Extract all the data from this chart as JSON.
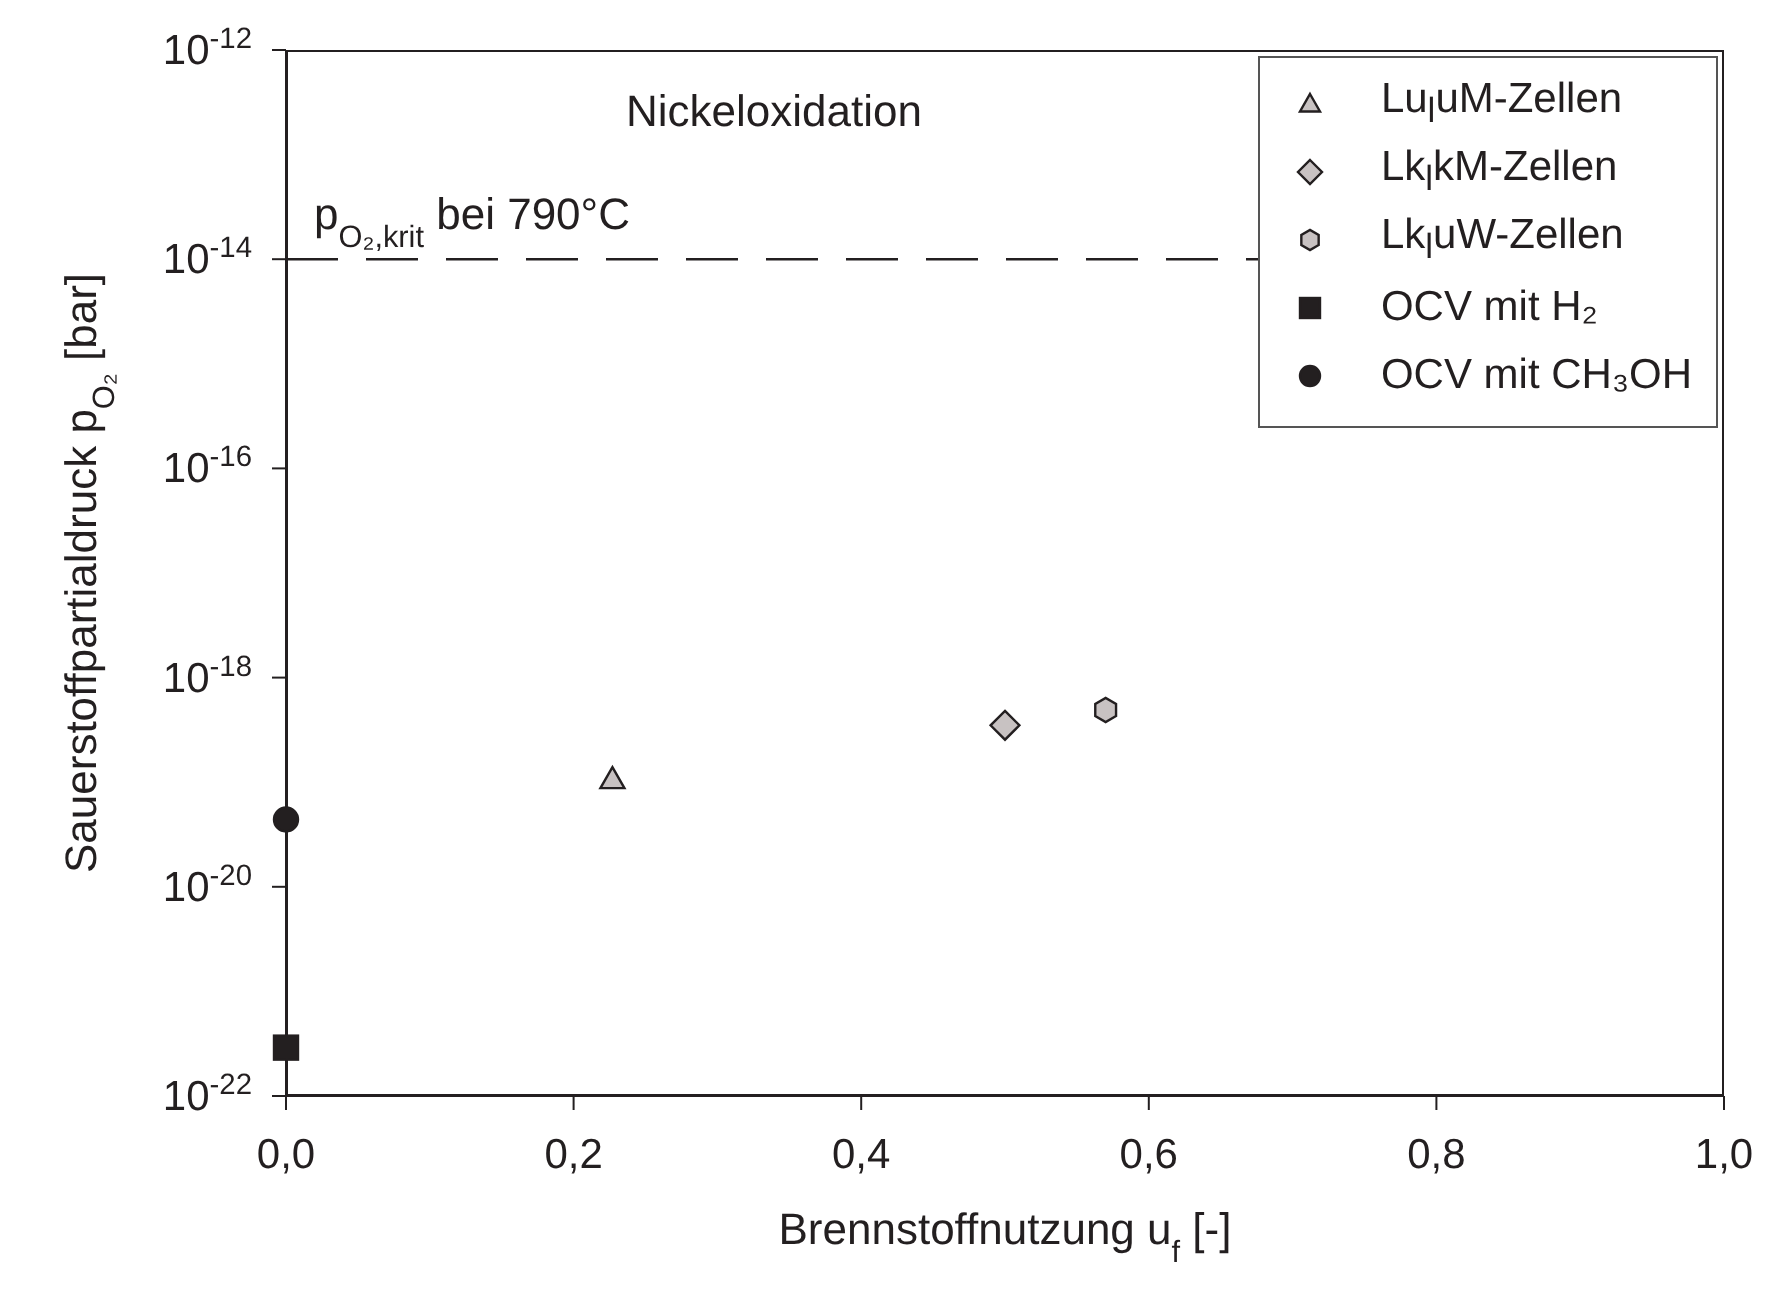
{
  "chart_data": {
    "type": "scatter",
    "title": "Nickeloxidation",
    "xlabel": "Brennstoffnutzung u$_{f}$ [-]",
    "ylabel": "Sauerstoffpartialdruck p$_{O₂}$ [bar]",
    "log": "y",
    "legend": "top right",
    "xlim": [
      0,
      1
    ],
    "xticks": [
      {
        "value": 0,
        "label": "0,0"
      },
      {
        "value": 0.2,
        "label": "0,2"
      },
      {
        "value": 0.4,
        "label": "0,4"
      },
      {
        "value": 0.6,
        "label": "0,6"
      },
      {
        "value": 0.8,
        "label": "0,8"
      },
      {
        "value": 1,
        "label": "1,0"
      }
    ],
    "ylim": [
      1e-22,
      1e-12
    ],
    "yticks": [
      {
        "value": 1e-22,
        "label": "10$^{-22}$"
      },
      {
        "value": 1e-20,
        "label": "10$^{-20}$"
      },
      {
        "value": 1e-18,
        "label": "10$^{-18}$"
      },
      {
        "value": 1e-16,
        "label": "10$^{-16}$"
      },
      {
        "value": 1e-14,
        "label": "10$^{-14}$"
      },
      {
        "value": 1e-12,
        "label": "10$^{-12}$"
      }
    ],
    "ref_lines": [
      {
        "axis": "y",
        "value": 1e-14,
        "label": "p$_{O₂,krit}$ bei 790°C",
        "color": "#231f20",
        "line_style": "dashed"
      }
    ],
    "series": [
      {
        "name": "Lu$_{l}$uM-Zellen",
        "color": "#c8c2c2",
        "marker": "triangle",
        "x": [
          0.227
        ],
        "values": [
          1.07e-19
        ]
      },
      {
        "name": "Lk$_{l}$kM-Zellen",
        "color": "#c8c2c2",
        "marker": "diamond",
        "x": [
          0.5
        ],
        "values": [
          3.5e-19
        ]
      },
      {
        "name": "Lk$_{l}$uW-Zellen",
        "color": "#c8c2c2",
        "x": [
          0.57
        ],
        "values": [
          4.9e-19
        ]
      },
      {
        "name": "OCV mit H₂",
        "color": "#231f20",
        "marker": "square",
        "x": [
          0
        ],
        "values": [
          2.9e-22
        ]
      },
      {
        "name": "OCV mit CH₃OH",
        "color": "#231f20",
        "marker": "circle",
        "x": [
          0
        ],
        "values": [
          4.4e-20
        ]
      }
    ]
  }
}
